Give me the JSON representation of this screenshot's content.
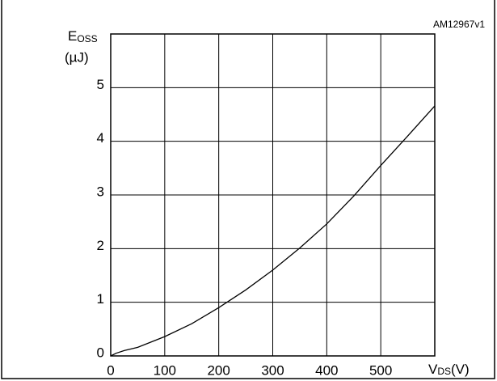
{
  "chart_data": {
    "type": "line",
    "annotation": "AM12967v1",
    "y_label": "E",
    "y_label_sub": "OSS",
    "y_unit": "(µJ)",
    "x_label": "V",
    "x_label_sub": "DS",
    "x_unit": "(V)",
    "x": [
      0,
      10,
      25,
      50,
      100,
      150,
      200,
      250,
      300,
      350,
      400,
      450,
      500,
      550,
      600
    ],
    "series": [
      {
        "color": "#000000",
        "values": [
          0,
          0.05,
          0.1,
          0.16,
          0.36,
          0.6,
          0.9,
          1.23,
          1.6,
          2.01,
          2.46,
          2.98,
          3.55,
          4.1,
          4.66
        ]
      }
    ],
    "xlim": [
      0,
      600
    ],
    "xticks": [
      0,
      100,
      200,
      300,
      400,
      500
    ],
    "ylim": [
      0,
      6
    ],
    "yticks": [
      0,
      1,
      2,
      3,
      4,
      5
    ],
    "grid": true
  }
}
